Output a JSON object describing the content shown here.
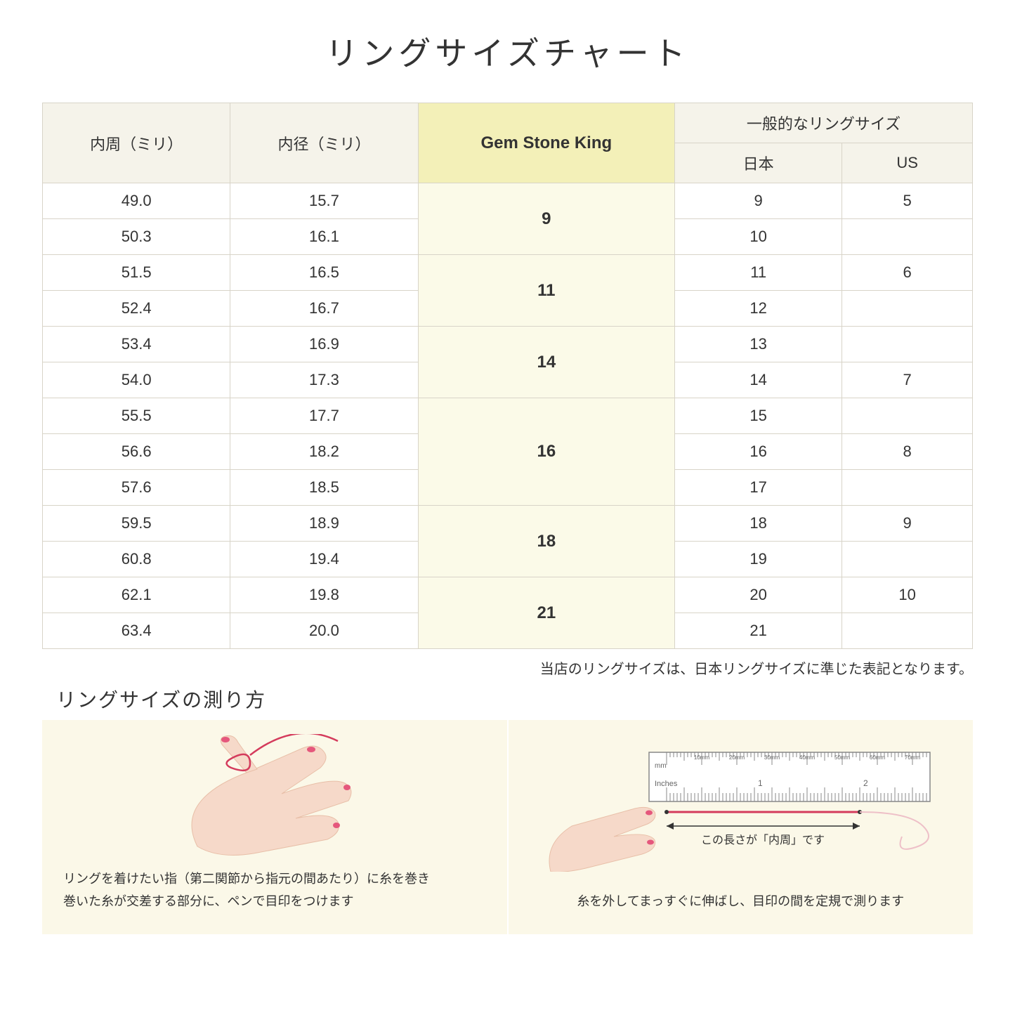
{
  "title": "リングサイズチャート",
  "headers": {
    "circumference": "内周（ミリ）",
    "diameter": "内径（ミリ）",
    "gem": "Gem Stone King",
    "general": "一般的なリングサイズ",
    "japan": "日本",
    "us": "US"
  },
  "groups": [
    {
      "gem": "9",
      "rows": [
        {
          "c": "49.0",
          "d": "15.7",
          "jp": "9",
          "us": "5"
        },
        {
          "c": "50.3",
          "d": "16.1",
          "jp": "10",
          "us": ""
        }
      ]
    },
    {
      "gem": "11",
      "rows": [
        {
          "c": "51.5",
          "d": "16.5",
          "jp": "11",
          "us": "6"
        },
        {
          "c": "52.4",
          "d": "16.7",
          "jp": "12",
          "us": ""
        }
      ]
    },
    {
      "gem": "14",
      "rows": [
        {
          "c": "53.4",
          "d": "16.9",
          "jp": "13",
          "us": ""
        },
        {
          "c": "54.0",
          "d": "17.3",
          "jp": "14",
          "us": "7"
        }
      ]
    },
    {
      "gem": "16",
      "rows": [
        {
          "c": "55.5",
          "d": "17.7",
          "jp": "15",
          "us": ""
        },
        {
          "c": "56.6",
          "d": "18.2",
          "jp": "16",
          "us": "8"
        },
        {
          "c": "57.6",
          "d": "18.5",
          "jp": "17",
          "us": ""
        }
      ]
    },
    {
      "gem": "18",
      "rows": [
        {
          "c": "59.5",
          "d": "18.9",
          "jp": "18",
          "us": "9"
        },
        {
          "c": "60.8",
          "d": "19.4",
          "jp": "19",
          "us": ""
        }
      ]
    },
    {
      "gem": "21",
      "rows": [
        {
          "c": "62.1",
          "d": "19.8",
          "jp": "20",
          "us": "10"
        },
        {
          "c": "63.4",
          "d": "20.0",
          "jp": "21",
          "us": ""
        }
      ]
    }
  ],
  "note": "当店のリングサイズは、日本リングサイズに準じた表記となります。",
  "howto_title": "リングサイズの測り方",
  "howto_left": "リングを着けたい指（第二関節から指元の間あたり）に糸を巻き\n巻いた糸が交差する部分に、ペンで目印をつけます",
  "howto_right": "糸を外してまっすぐに伸ばし、目印の間を定規で測ります",
  "measure_label": "この長さが「内周」です",
  "ruler_labels": {
    "mm": "mm",
    "inches": "Inches",
    "mm_ticks": [
      "10mm",
      "20mm",
      "30mm",
      "40mm",
      "50mm",
      "60mm",
      "70mm"
    ],
    "inch_ticks": [
      "1",
      "2"
    ]
  },
  "colors": {
    "header_bg": "#f5f3ea",
    "gem_header_bg": "#f3f0b8",
    "gem_cell_bg": "#fbfae8",
    "border": "#d8d4c8",
    "howto_bg": "#fbf8e8",
    "skin": "#f6d9c9",
    "skin_shadow": "#e8bfa8",
    "nail": "#e5577c",
    "thread": "#d43b5c",
    "ruler_fill": "#ffffff",
    "ruler_stroke": "#888888",
    "arrow": "#333333"
  }
}
